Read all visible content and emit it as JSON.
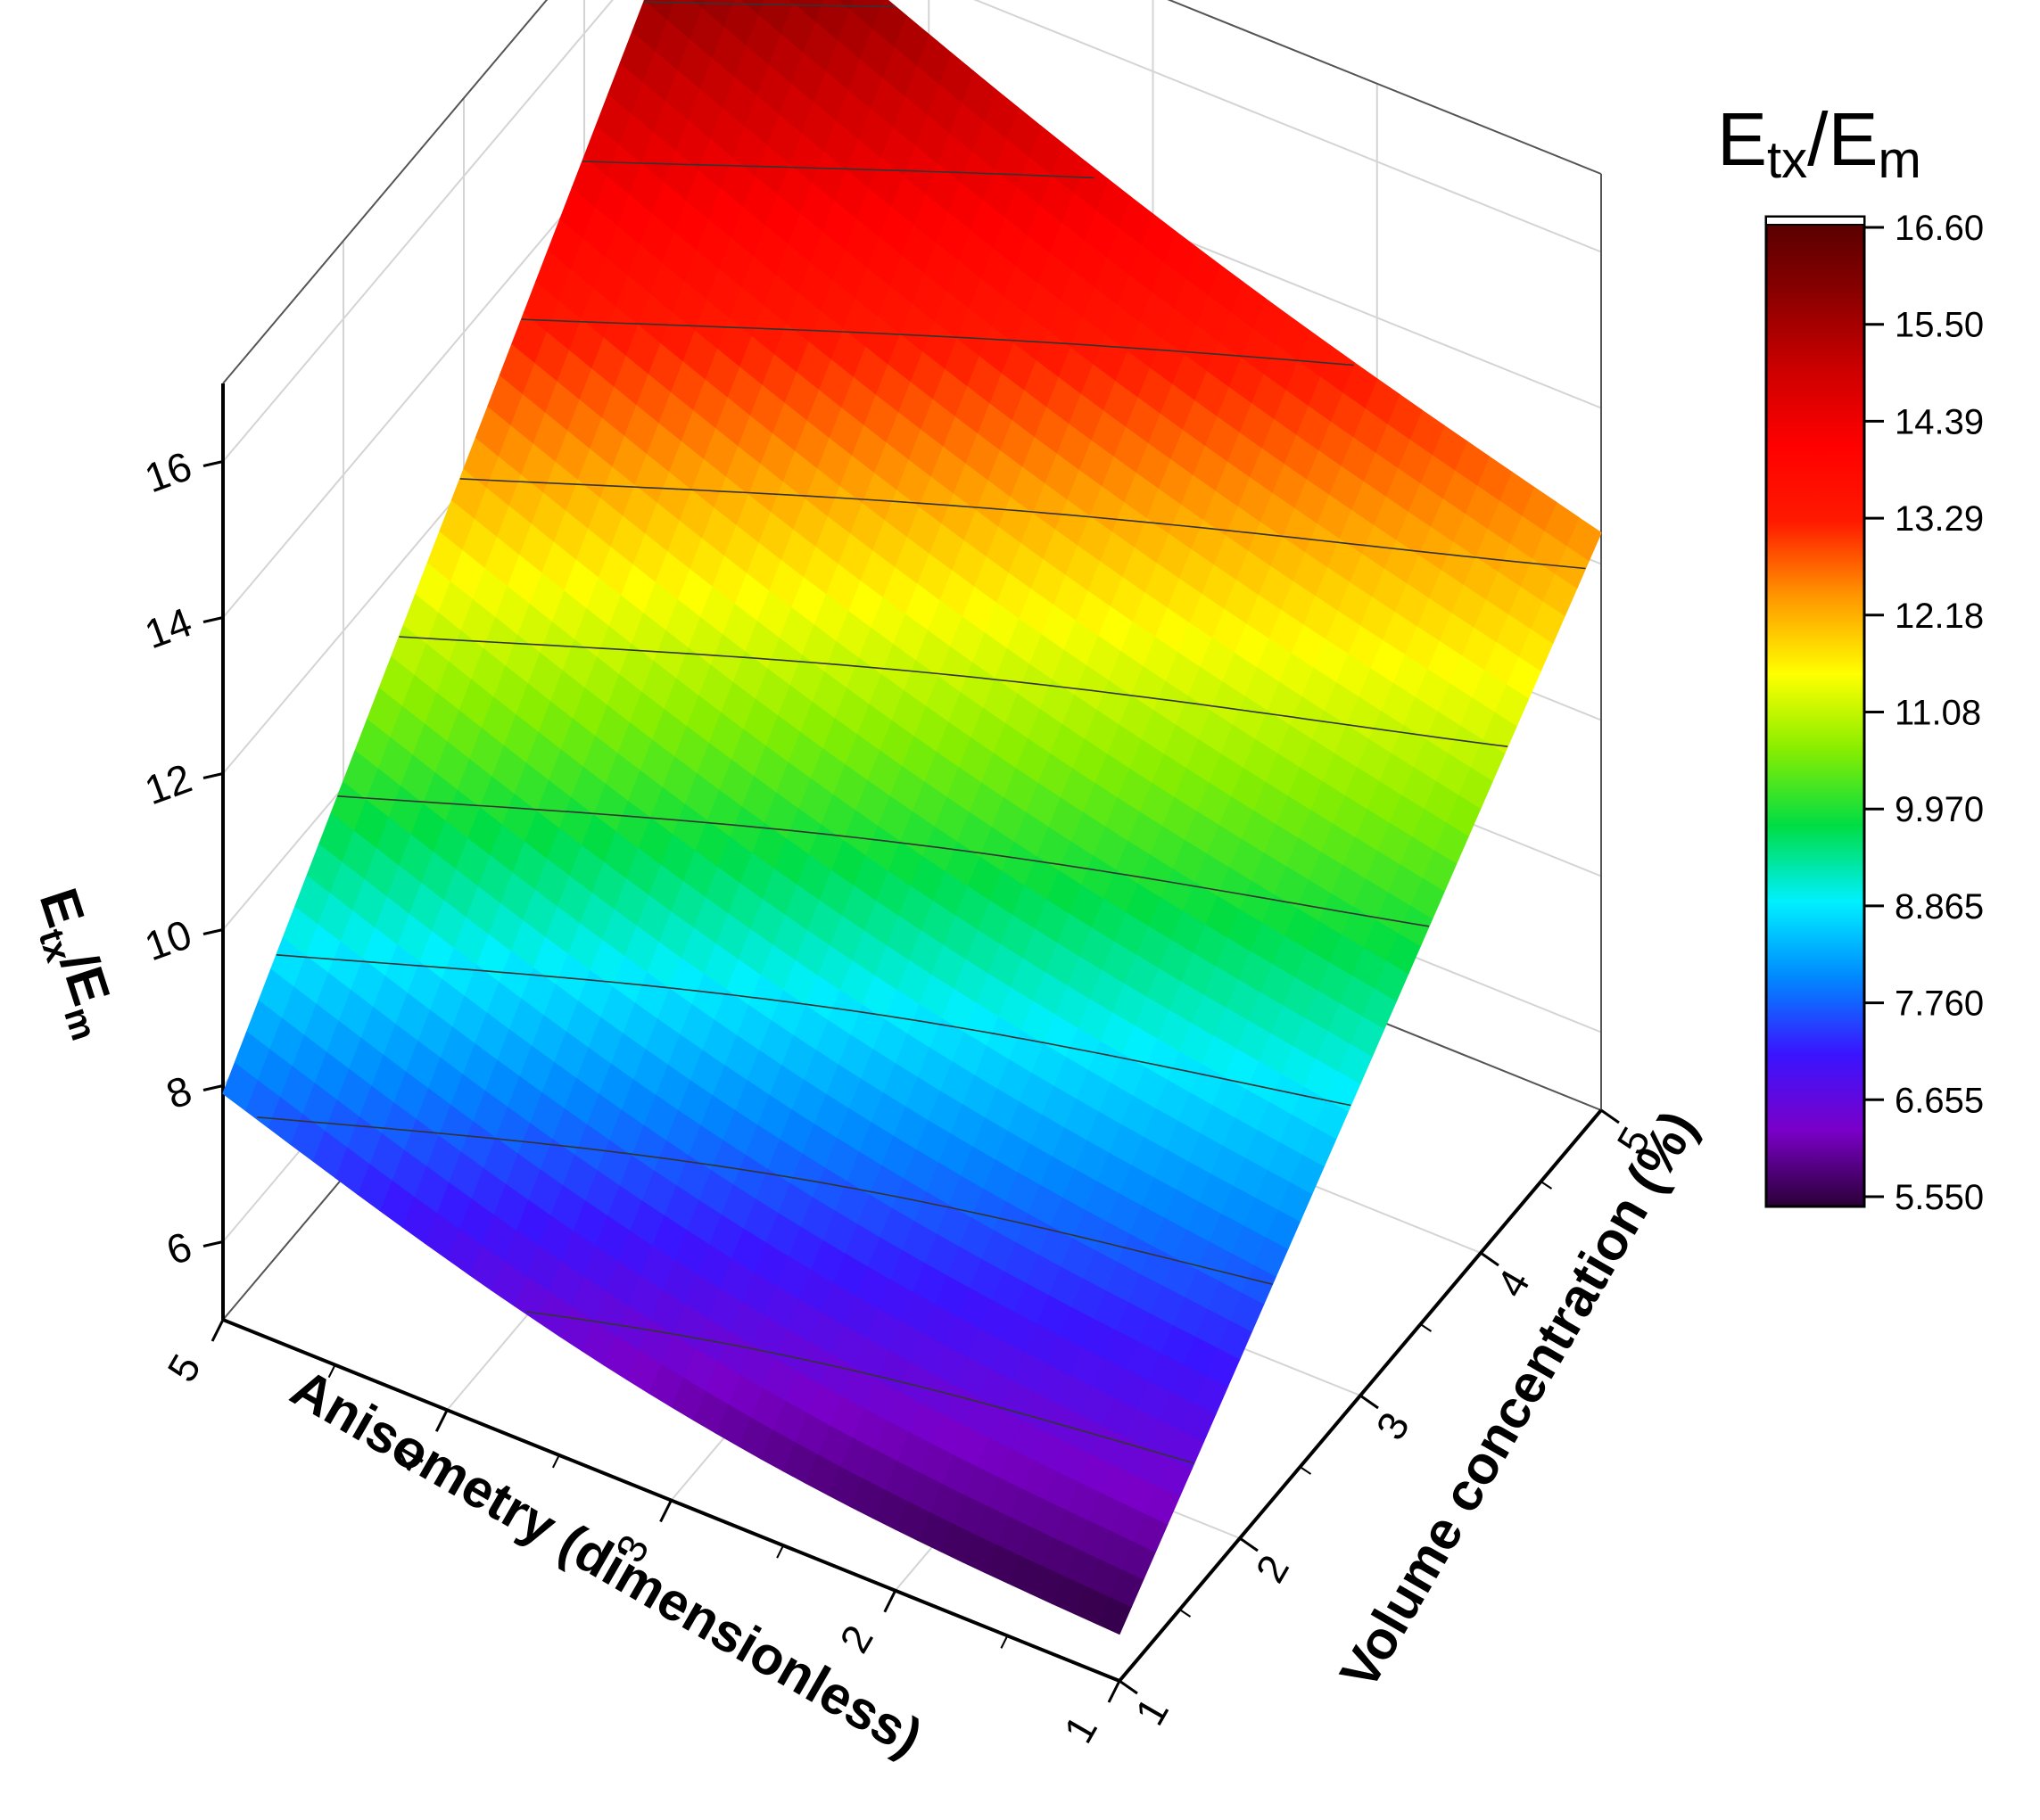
{
  "chart_data": {
    "type": "surface3d",
    "x_axis": {
      "label": "Anisometry (dimensionless)",
      "range": [
        1,
        5
      ],
      "ticks": [
        "1",
        "2",
        "3",
        "4",
        "5"
      ]
    },
    "y_axis": {
      "label": "Volume concentration (%)",
      "range": [
        1,
        5
      ],
      "ticks": [
        "1",
        "2",
        "3",
        "4",
        "5"
      ]
    },
    "z_axis": {
      "label_main": "E",
      "label_sub1": "tx",
      "label_sep": "/E",
      "label_sub2": "m",
      "range": [
        5.0,
        17.0
      ],
      "ticks": [
        "6",
        "8",
        "10",
        "12",
        "14",
        "16"
      ]
    },
    "corner_values": {
      "anisometry_1_conc_1": 5.6,
      "anisometry_5_conc_1": 7.9,
      "anisometry_1_conc_5": 12.4,
      "anisometry_5_conc_5": 16.6
    },
    "contour_levels": [
      6.655,
      7.76,
      8.865,
      9.97,
      11.08,
      12.18,
      13.29,
      14.39,
      15.5
    ],
    "colorbar": {
      "title_main": "E",
      "title_sub1": "tx",
      "title_sep": "/E",
      "title_sub2": "m",
      "ticks": [
        "16.60",
        "15.50",
        "14.39",
        "13.29",
        "12.18",
        "11.08",
        "9.970",
        "8.865",
        "7.760",
        "6.655",
        "5.550"
      ],
      "min": 5.55,
      "max": 16.6,
      "colors": [
        "#2a0035",
        "#7a00c8",
        "#3a14ff",
        "#0088ff",
        "#00f0ff",
        "#00dd44",
        "#88ee00",
        "#ffff00",
        "#ff9900",
        "#ff1a00",
        "#ff0000",
        "#cc0000",
        "#8a0000",
        "#550000"
      ]
    },
    "grid": true
  }
}
